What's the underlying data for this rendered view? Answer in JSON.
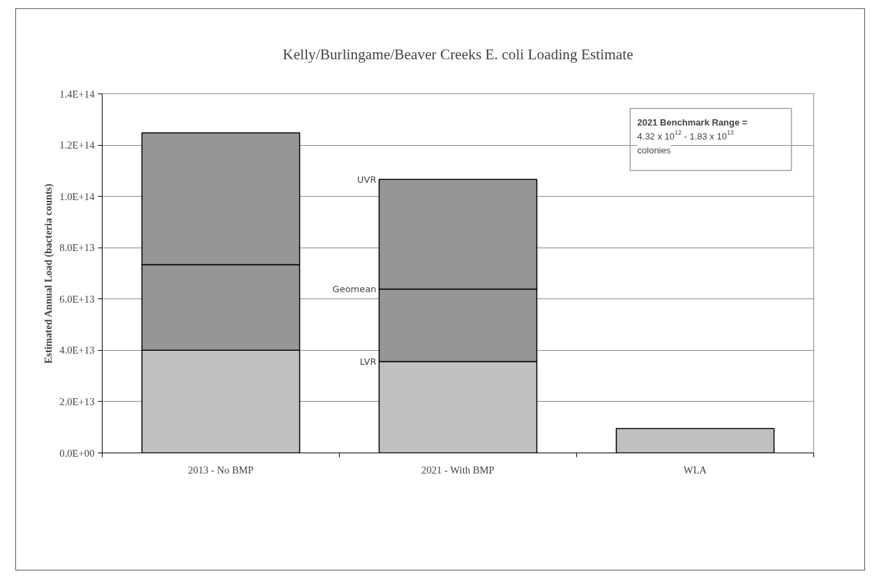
{
  "chart_data": {
    "type": "bar",
    "title": "Kelly/Burlingame/Beaver Creeks E. coli Loading Estimate",
    "ylabel": "Estimated Annual Load (bacteria counts)",
    "categories": [
      "2013 - No BMP",
      "2021 - With BMP",
      "WLA"
    ],
    "stacked": true,
    "series": [
      {
        "name": "LVR",
        "color": "#c0c0c0",
        "values": [
          40000000000000.0,
          35600000000000.0,
          9500000000000.0
        ]
      },
      {
        "name": "Geomean",
        "color": "#969696",
        "values": [
          33400000000000.0,
          28300000000000.0,
          null
        ]
      },
      {
        "name": "UVR",
        "color": "#969696",
        "values": [
          51400000000000.0,
          42700000000000.0,
          null
        ]
      }
    ],
    "ylim": [
      0,
      140000000000000.0
    ],
    "yticks": [
      {
        "value": 0,
        "label": "0.0E+00"
      },
      {
        "value": 20000000000000.0,
        "label": "2.0E+13"
      },
      {
        "value": 40000000000000.0,
        "label": "4.0E+13"
      },
      {
        "value": 60000000000000.0,
        "label": "6.0E+13"
      },
      {
        "value": 80000000000000.0,
        "label": "8.0E+13"
      },
      {
        "value": 100000000000000.0,
        "label": "1.0E+14"
      },
      {
        "value": 120000000000000.0,
        "label": "1.2E+14"
      },
      {
        "value": 140000000000000.0,
        "label": "1.4E+14"
      }
    ],
    "grid": "y",
    "annotations": [
      "2021 Benchmark Range =",
      "4.32 x 10$^{12}$ - 1.83 x 10$^{13}$",
      "colonies"
    ]
  }
}
